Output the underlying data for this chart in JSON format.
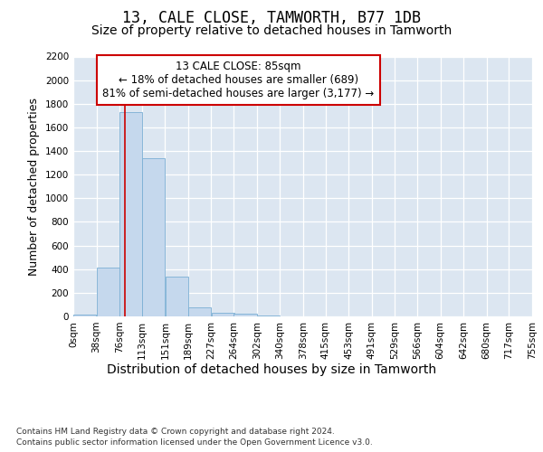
{
  "title": "13, CALE CLOSE, TAMWORTH, B77 1DB",
  "subtitle": "Size of property relative to detached houses in Tamworth",
  "xlabel": "Distribution of detached houses by size in Tamworth",
  "ylabel": "Number of detached properties",
  "bar_color": "#c5d8ed",
  "bar_edge_color": "#7bafd4",
  "background_color": "#dce6f1",
  "grid_color": "#ffffff",
  "annotation_text": "13 CALE CLOSE: 85sqm\n← 18% of detached houses are smaller (689)\n81% of semi-detached houses are larger (3,177) →",
  "vline_color": "#cc0000",
  "property_size": 85,
  "bin_edges": [
    0,
    38,
    76,
    113,
    151,
    189,
    227,
    264,
    302,
    340,
    378,
    415,
    453,
    491,
    529,
    566,
    604,
    642,
    680,
    717,
    755
  ],
  "bin_counts": [
    15,
    410,
    1730,
    1340,
    335,
    75,
    30,
    20,
    5,
    0,
    0,
    0,
    0,
    0,
    0,
    0,
    0,
    0,
    0,
    0
  ],
  "tick_labels": [
    "0sqm",
    "38sqm",
    "76sqm",
    "113sqm",
    "151sqm",
    "189sqm",
    "227sqm",
    "264sqm",
    "302sqm",
    "340sqm",
    "378sqm",
    "415sqm",
    "453sqm",
    "491sqm",
    "529sqm",
    "566sqm",
    "604sqm",
    "642sqm",
    "680sqm",
    "717sqm",
    "755sqm"
  ],
  "ylim_max": 2200,
  "yticks": [
    0,
    200,
    400,
    600,
    800,
    1000,
    1200,
    1400,
    1600,
    1800,
    2000,
    2200
  ],
  "footnote_line1": "Contains HM Land Registry data © Crown copyright and database right 2024.",
  "footnote_line2": "Contains public sector information licensed under the Open Government Licence v3.0.",
  "title_fontsize": 12,
  "subtitle_fontsize": 10,
  "ylabel_fontsize": 9,
  "xlabel_fontsize": 10,
  "tick_fontsize": 7.5,
  "annotation_fontsize": 8.5,
  "footnote_fontsize": 6.5
}
